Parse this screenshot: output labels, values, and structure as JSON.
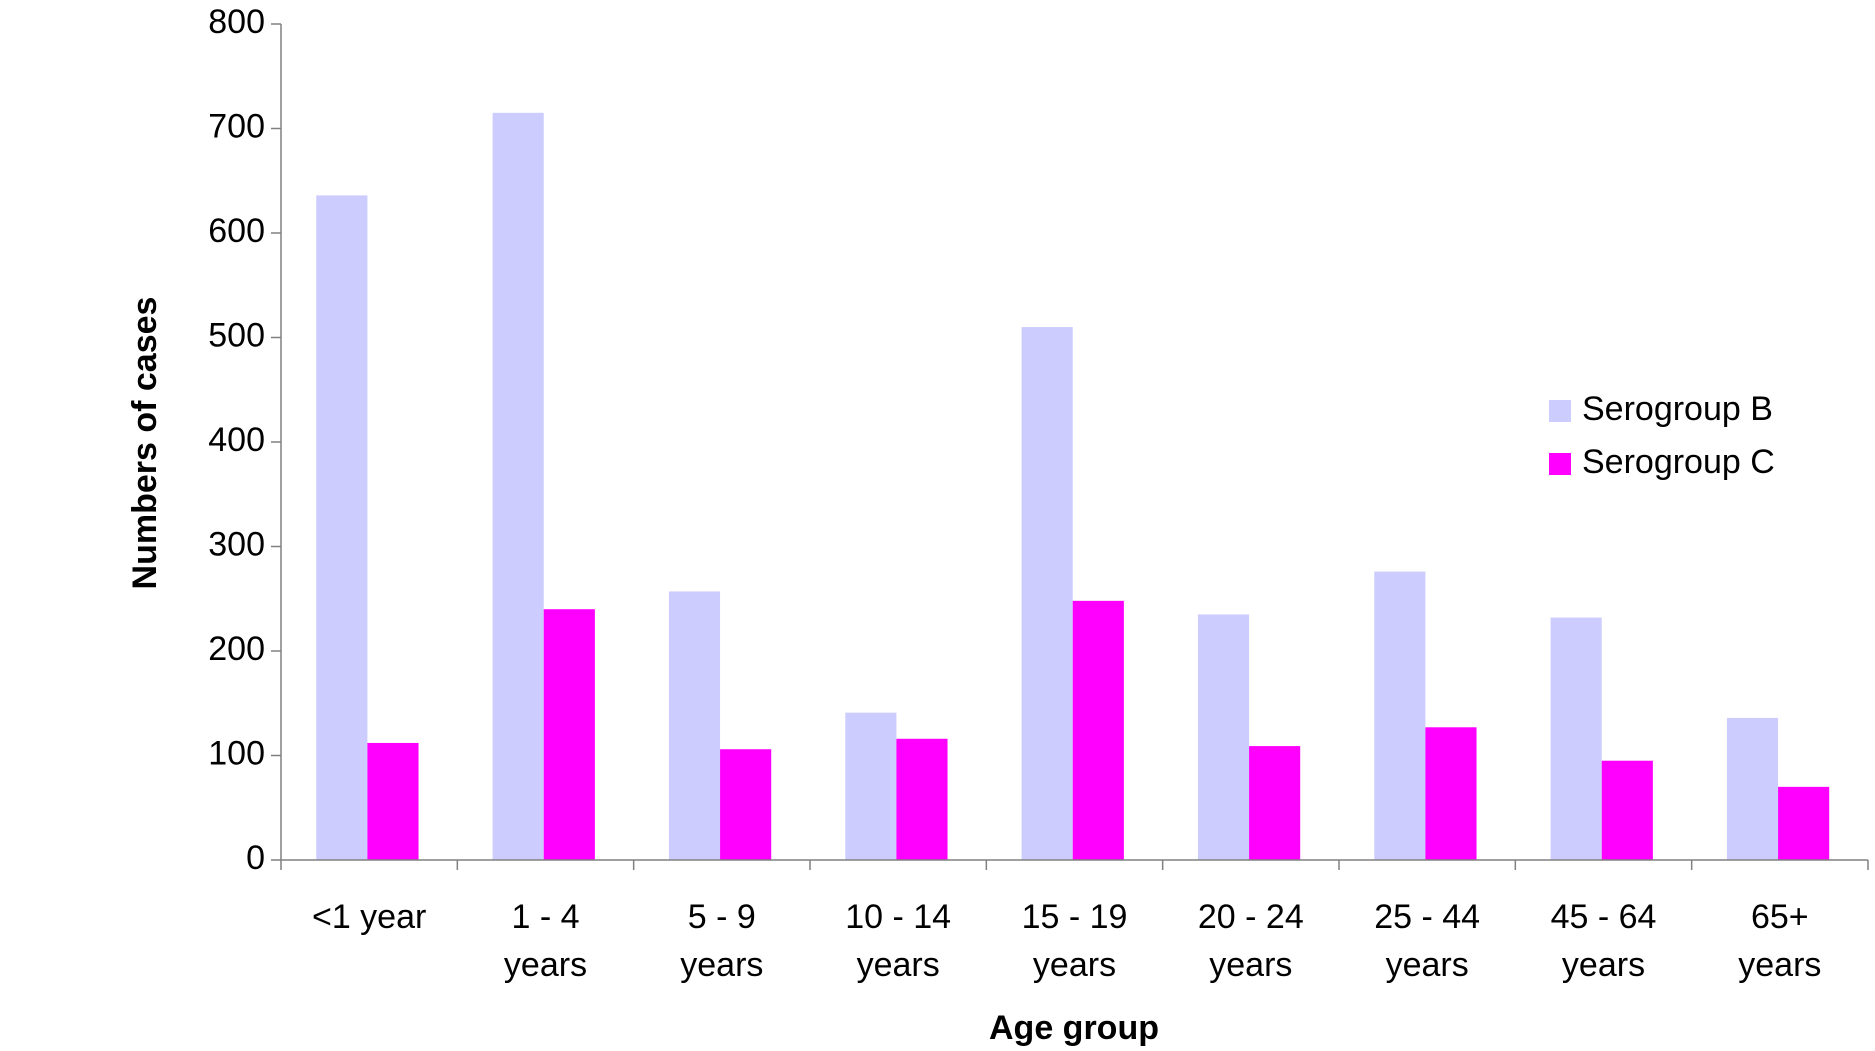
{
  "chart_data": {
    "type": "bar",
    "x_label": "Age group",
    "y_label": "Numbers of cases",
    "categories": [
      "<1 year",
      "1 - 4 years",
      "5 - 9 years",
      "10 - 14 years",
      "15 - 19 years",
      "20 - 24 years",
      "25 - 44 years",
      "45 - 64 years",
      "65+ years"
    ],
    "series": [
      {
        "name": "Serogroup B",
        "color": "#ccccff",
        "values": [
          636,
          715,
          257,
          141,
          510,
          235,
          276,
          232,
          136
        ]
      },
      {
        "name": "Serogroup C",
        "color": "#ff00ff",
        "values": [
          112,
          240,
          106,
          116,
          248,
          109,
          127,
          95,
          70
        ]
      }
    ],
    "ylim": [
      0,
      800
    ],
    "yticks": [
      0,
      100,
      200,
      300,
      400,
      500,
      600,
      700,
      800
    ],
    "grid": false,
    "legend": "right"
  }
}
